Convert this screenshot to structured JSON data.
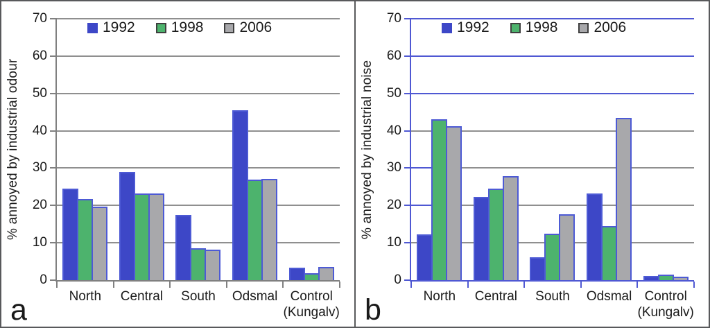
{
  "figure": {
    "background": "#ffffff",
    "frame_color": "#58595b",
    "text_color": "#1a1a1a"
  },
  "chart_data": [
    {
      "type": "bar",
      "panel_letter": "a",
      "title": "",
      "ylabel": "% annoyed by industrial odour",
      "xlabel": "",
      "categories": [
        "North",
        "Central",
        "South",
        "Odsmal",
        "Control\n(Kungalv)"
      ],
      "series": [
        {
          "name": "1992",
          "color": "#3d47c7",
          "border": "#4d5ad5",
          "key_border": "#3d47c7",
          "values": [
            24.5,
            28.9,
            17.4,
            45.4,
            3.4
          ]
        },
        {
          "name": "1998",
          "color": "#4db36d",
          "border": "#4d5ad5",
          "key_border": "#3f3f3f",
          "values": [
            21.8,
            23.3,
            8.6,
            26.9,
            1.9
          ]
        },
        {
          "name": "2006",
          "color": "#a8a8ab",
          "border": "#4d5ad5",
          "key_border": "#3f3f3f",
          "values": [
            19.6,
            23.3,
            8.2,
            27.2,
            3.5
          ]
        }
      ],
      "ylim": [
        0,
        70
      ],
      "ytick_step": 10,
      "grid": true,
      "legend_position": "top-inside",
      "style": {
        "axis_color": "#808080",
        "grid_color": "#8f8f8f",
        "grid_overrides": {},
        "grid_leads": {},
        "lead_color": "#4f58d3"
      }
    },
    {
      "type": "bar",
      "panel_letter": "b",
      "title": "",
      "ylabel": "% annoyed by industrial noise",
      "xlabel": "",
      "categories": [
        "North",
        "Central",
        "South",
        "Odsmal",
        "Control\n(Kungalv)"
      ],
      "series": [
        {
          "name": "1992",
          "color": "#3d47c7",
          "border": "#4d5ad5",
          "key_border": "#3d47c7",
          "values": [
            12.2,
            22.3,
            6.2,
            23.3,
            1.2
          ]
        },
        {
          "name": "1998",
          "color": "#4db36d",
          "border": "#4d5ad5",
          "key_border": "#3f3f3f",
          "values": [
            43.0,
            24.5,
            12.5,
            14.4,
            1.5
          ]
        },
        {
          "name": "2006",
          "color": "#a8a8ab",
          "border": "#4d5ad5",
          "key_border": "#3f3f3f",
          "values": [
            41.2,
            27.9,
            17.7,
            43.4,
            0.9
          ]
        }
      ],
      "ylim": [
        0,
        70
      ],
      "ytick_step": 10,
      "grid": true,
      "legend_position": "top-inside",
      "style": {
        "axis_color": "#4f58d3",
        "grid_color": "#8f8f8f",
        "grid_overrides": {
          "50": "#4f58d3",
          "60": "#4f58d3",
          "70": "#4f58d3"
        },
        "grid_leads": {
          "20": 55,
          "30": 55
        },
        "lead_color": "#4f58d3"
      }
    }
  ]
}
